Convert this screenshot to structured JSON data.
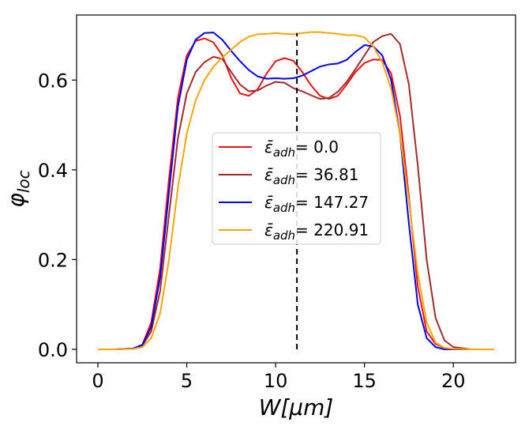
{
  "chart_data": {
    "type": "line",
    "title": "",
    "xlabel": "W[μm]",
    "ylabel": "φ_loc",
    "xlim": [
      -1.2,
      23.5
    ],
    "ylim": [
      -0.03,
      0.745
    ],
    "xticks": [
      0,
      5,
      10,
      15,
      20
    ],
    "xtick_labels": [
      "0",
      "5",
      "10",
      "15",
      "20"
    ],
    "yticks": [
      0.0,
      0.2,
      0.4,
      0.6
    ],
    "ytick_labels": [
      "0.0",
      "0.2",
      "0.4",
      "0.6"
    ],
    "grid": false,
    "legend_placement": "center",
    "vline": {
      "x": 11.2,
      "ymin": 0.0,
      "ymax": 0.705,
      "style": "dashed",
      "color": "#000000"
    },
    "series": [
      {
        "name": "ε̄_adh = 0.0",
        "legend_var": "ε̄",
        "legend_sub": "adh",
        "legend_value": "= 0.0",
        "color": "#ee1111",
        "x": [
          0,
          1,
          2,
          2.5,
          3,
          3.5,
          4,
          4.5,
          5,
          5.5,
          6,
          6.5,
          7,
          7.5,
          8,
          8.5,
          9,
          9.5,
          10,
          10.5,
          11,
          11.5,
          12,
          12.5,
          13,
          13.5,
          14,
          14.5,
          15,
          15.5,
          16,
          16.5,
          17,
          17.5,
          18,
          18.5,
          19,
          19.5,
          20,
          21,
          22.3
        ],
        "y": [
          0,
          0,
          0.002,
          0.01,
          0.06,
          0.18,
          0.38,
          0.56,
          0.655,
          0.687,
          0.693,
          0.684,
          0.655,
          0.605,
          0.57,
          0.565,
          0.58,
          0.615,
          0.642,
          0.649,
          0.643,
          0.618,
          0.588,
          0.565,
          0.558,
          0.565,
          0.59,
          0.618,
          0.638,
          0.646,
          0.645,
          0.615,
          0.52,
          0.34,
          0.14,
          0.04,
          0.012,
          0.003,
          0,
          0,
          0
        ]
      },
      {
        "name": "ε̄_adh = 36.81",
        "legend_var": "ε̄",
        "legend_sub": "adh",
        "legend_value": "= 36.81",
        "color": "#a52a2a",
        "x": [
          0,
          1,
          2,
          2.5,
          3,
          3.5,
          4,
          4.5,
          5,
          5.5,
          6,
          6.5,
          7,
          7.5,
          8,
          8.5,
          9,
          9.5,
          10,
          10.5,
          11,
          11.5,
          12,
          12.5,
          13,
          13.5,
          14,
          14.5,
          15,
          15.5,
          16,
          16.5,
          17,
          17.5,
          18,
          18.5,
          19,
          19.5,
          20,
          21,
          22.3
        ],
        "y": [
          0,
          0,
          0.002,
          0.008,
          0.04,
          0.13,
          0.3,
          0.47,
          0.57,
          0.618,
          0.64,
          0.652,
          0.647,
          0.618,
          0.59,
          0.575,
          0.577,
          0.588,
          0.596,
          0.594,
          0.582,
          0.575,
          0.566,
          0.558,
          0.56,
          0.574,
          0.596,
          0.625,
          0.655,
          0.685,
          0.698,
          0.703,
          0.68,
          0.59,
          0.41,
          0.2,
          0.07,
          0.02,
          0.005,
          0,
          0
        ]
      },
      {
        "name": "ε̄_adh = 147.27",
        "legend_var": "ε̄",
        "legend_sub": "adh",
        "legend_value": "= 147.27",
        "color": "#0000ee",
        "x": [
          0,
          1,
          2,
          2.5,
          3,
          3.5,
          4,
          4.5,
          5,
          5.5,
          6,
          6.5,
          7,
          7.5,
          8,
          8.5,
          9,
          9.5,
          10,
          10.5,
          11,
          11.5,
          12,
          12.5,
          13,
          13.5,
          14,
          14.5,
          15,
          15.5,
          16,
          16.5,
          17,
          17.5,
          18,
          18.5,
          19,
          19.5,
          20,
          21,
          22.3
        ],
        "y": [
          0,
          0,
          0.002,
          0.01,
          0.05,
          0.16,
          0.35,
          0.54,
          0.645,
          0.69,
          0.705,
          0.706,
          0.69,
          0.665,
          0.642,
          0.622,
          0.608,
          0.603,
          0.604,
          0.603,
          0.604,
          0.61,
          0.62,
          0.63,
          0.635,
          0.637,
          0.645,
          0.663,
          0.678,
          0.675,
          0.655,
          0.6,
          0.48,
          0.28,
          0.1,
          0.025,
          0.005,
          0,
          0,
          0,
          0
        ]
      },
      {
        "name": "ε̄_adh = 220.91",
        "legend_var": "ε̄",
        "legend_sub": "adh",
        "legend_value": "= 220.91",
        "color": "#ffa500",
        "x": [
          0,
          1,
          2,
          2.5,
          3,
          3.5,
          4,
          4.5,
          5,
          5.5,
          6,
          6.5,
          7,
          7.5,
          8,
          8.5,
          9,
          9.5,
          10,
          10.5,
          11,
          11.5,
          12,
          12.5,
          13,
          13.5,
          14,
          14.5,
          15,
          15.5,
          16,
          16.5,
          17,
          17.5,
          18,
          18.5,
          19,
          19.5,
          20,
          21,
          22.3
        ],
        "y": [
          0,
          0,
          0.001,
          0.005,
          0.025,
          0.08,
          0.2,
          0.36,
          0.48,
          0.555,
          0.6,
          0.63,
          0.65,
          0.668,
          0.685,
          0.697,
          0.702,
          0.703,
          0.705,
          0.703,
          0.702,
          0.705,
          0.707,
          0.707,
          0.705,
          0.703,
          0.7,
          0.7,
          0.695,
          0.675,
          0.64,
          0.58,
          0.48,
          0.33,
          0.17,
          0.06,
          0.015,
          0.003,
          0.001,
          0,
          0
        ]
      }
    ]
  }
}
